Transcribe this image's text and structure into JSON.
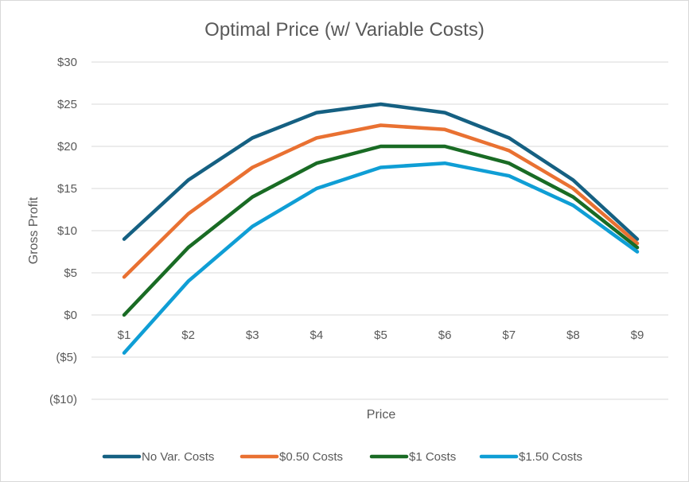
{
  "chart_data": {
    "type": "line",
    "title": "Optimal Price (w/ Variable Costs)",
    "xlabel": "Price",
    "ylabel": "Gross Profit",
    "categories": [
      "$1",
      "$2",
      "$3",
      "$4",
      "$5",
      "$6",
      "$7",
      "$8",
      "$9"
    ],
    "ylim": [
      -10,
      30
    ],
    "yticks": [
      30,
      25,
      20,
      15,
      10,
      5,
      0,
      -5,
      -10
    ],
    "ytick_labels": [
      "$30",
      "$25",
      "$20",
      "$15",
      "$10",
      "$5",
      "$0",
      "($5)",
      "($10)"
    ],
    "negative_label_color": "#FF0000",
    "grid": true,
    "legend": "bottom",
    "series": [
      {
        "name": "No Var. Costs",
        "color": "#156082",
        "values": [
          9,
          16,
          21,
          24,
          25,
          24,
          21,
          16,
          9
        ]
      },
      {
        "name": "$0.50 Costs",
        "color": "#E97132",
        "values": [
          4.5,
          12,
          17.5,
          21,
          22.5,
          22,
          19.5,
          15,
          8.5
        ]
      },
      {
        "name": "$1 Costs",
        "color": "#196B24",
        "values": [
          0,
          8,
          14,
          18,
          20,
          20,
          18,
          14,
          8
        ]
      },
      {
        "name": "$1.50 Costs",
        "color": "#0F9ED5",
        "values": [
          -4.5,
          4,
          10.5,
          15,
          17.5,
          18,
          16.5,
          13,
          7.5
        ]
      }
    ]
  }
}
